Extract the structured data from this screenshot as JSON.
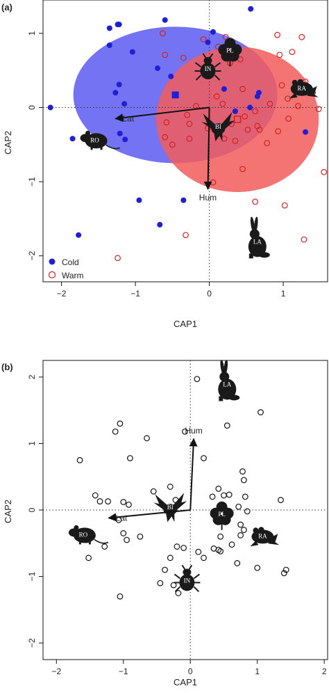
{
  "colors": {
    "cold": "#1f1fd6",
    "warm": "#d42020",
    "cold_ellipse": "#5b5bf2",
    "warm_ellipse": "#f25c5c",
    "ink": "#111111",
    "silhouette": "#1a1a1a"
  },
  "chart_data": [
    {
      "type": "scatter",
      "panel_label": "(a)",
      "xlabel": "CAP1",
      "ylabel": "CAP2",
      "xlim": [
        -2.25,
        1.6
      ],
      "ylim": [
        -2.35,
        1.45
      ],
      "xticks": [
        -2,
        -1,
        0,
        1
      ],
      "yticks": [
        -2,
        -1,
        0,
        1
      ],
      "xtick_labels": [
        "−2",
        "−1",
        "0",
        "1"
      ],
      "ytick_labels": [
        "−2",
        "−1",
        "0",
        "1"
      ],
      "legend": {
        "position": "bottom-left",
        "entries": [
          "Cold",
          "Warm"
        ]
      },
      "series": [
        {
          "name": "Cold",
          "marker": "filled-circle",
          "color": "cold",
          "points": [
            [
              -1.35,
              1.07
            ],
            [
              -1.24,
              1.12
            ],
            [
              -1.22,
              1.12
            ],
            [
              -0.6,
              1.18
            ],
            [
              0.05,
              1.02
            ],
            [
              0.56,
              1.33
            ],
            [
              -1.35,
              0.84
            ],
            [
              -1.04,
              0.75
            ],
            [
              -0.02,
              0.88
            ],
            [
              -1.22,
              0.31
            ],
            [
              -0.7,
              0.53
            ],
            [
              -0.52,
              0.42
            ],
            [
              -1.27,
              0.2
            ],
            [
              -1.15,
              0.05
            ],
            [
              -2.15,
              0.0
            ],
            [
              -1.85,
              -0.42
            ],
            [
              -1.21,
              -0.35
            ],
            [
              -1.14,
              -0.43
            ],
            [
              -0.95,
              -1.25
            ],
            [
              -0.35,
              -1.25
            ],
            [
              -0.67,
              -1.58
            ],
            [
              -1.77,
              -1.72
            ],
            [
              1.3,
              -0.33
            ],
            [
              0.67,
              0.2
            ],
            [
              0.65,
              0.15
            ],
            [
              0.2,
              0.25
            ],
            [
              0.35,
              -0.05
            ],
            [
              0.55,
              0.0
            ]
          ]
        },
        {
          "name": "Warm",
          "marker": "open-circle",
          "color": "warm",
          "points": [
            [
              -0.63,
              1.0
            ],
            [
              -0.6,
              0.71
            ],
            [
              -0.35,
              0.67
            ],
            [
              -0.08,
              0.92
            ],
            [
              0.12,
              0.82
            ],
            [
              0.22,
              0.95
            ],
            [
              0.42,
              0.65
            ],
            [
              0.92,
              0.98
            ],
            [
              1.12,
              0.75
            ],
            [
              1.25,
              0.95
            ],
            [
              0.95,
              0.71
            ],
            [
              0.98,
              0.3
            ],
            [
              1.3,
              0.35
            ],
            [
              1.06,
              0.12
            ],
            [
              1.2,
              0.02
            ],
            [
              1.4,
              0.2
            ],
            [
              1.48,
              -0.02
            ],
            [
              1.07,
              -0.15
            ],
            [
              0.93,
              -0.32
            ],
            [
              0.65,
              -0.25
            ],
            [
              0.2,
              -0.42
            ],
            [
              0.35,
              -0.45
            ],
            [
              0.52,
              -0.3
            ],
            [
              0.68,
              -0.3
            ],
            [
              0.78,
              -0.48
            ],
            [
              0.45,
              -0.83
            ],
            [
              0.05,
              -1.01
            ],
            [
              0.62,
              -1.27
            ],
            [
              1.02,
              -1.32
            ],
            [
              1.55,
              -0.87
            ],
            [
              1.28,
              -1.78
            ],
            [
              -0.32,
              -1.72
            ],
            [
              -1.24,
              -2.03
            ],
            [
              -0.6,
              -0.4
            ],
            [
              -0.5,
              -0.5
            ],
            [
              -0.27,
              -0.42
            ],
            [
              -0.27,
              -0.22
            ],
            [
              -0.58,
              -0.2
            ],
            [
              -0.3,
              -0.1
            ],
            [
              -0.18,
              0.02
            ],
            [
              -0.02,
              -0.28
            ],
            [
              0.1,
              0.15
            ],
            [
              0.18,
              0.05
            ],
            [
              0.3,
              -0.22
            ],
            [
              0.48,
              -0.12
            ],
            [
              0.62,
              -0.05
            ],
            [
              0.82,
              0.05
            ],
            [
              0.28,
              0.6
            ],
            [
              0.45,
              0.25
            ]
          ]
        }
      ],
      "centroids": {
        "cold": [
          -0.46,
          0.17
        ],
        "warm": [
          0.38,
          -0.16
        ]
      },
      "ellipses": [
        {
          "group": "Cold",
          "center": [
            -0.46,
            0.17
          ],
          "rx": 1.38,
          "ry": 0.92
        },
        {
          "group": "Warm",
          "center": [
            0.38,
            -0.16
          ],
          "rx": 1.1,
          "ry": 0.98
        }
      ],
      "vectors": [
        {
          "label": "Lat",
          "to": [
            -1.27,
            -0.15
          ]
        },
        {
          "label": "Hum",
          "to": [
            -0.02,
            -1.1
          ]
        }
      ],
      "silhouettes": [
        {
          "label": "PL",
          "animal": "plant",
          "at": [
            0.28,
            0.78
          ]
        },
        {
          "label": "IN",
          "animal": "insect",
          "at": [
            -0.02,
            0.53
          ]
        },
        {
          "label": "RA",
          "animal": "frog",
          "at": [
            1.25,
            0.27
          ]
        },
        {
          "label": "BI",
          "animal": "bird",
          "at": [
            0.12,
            -0.25
          ]
        },
        {
          "label": "RO",
          "animal": "rodent",
          "at": [
            -1.55,
            -0.43
          ]
        },
        {
          "label": "LA",
          "animal": "hare",
          "at": [
            0.65,
            -1.8
          ]
        }
      ]
    },
    {
      "type": "scatter",
      "panel_label": "(b)",
      "xlabel": "CAP1",
      "ylabel": "CAP2",
      "xlim": [
        -2.2,
        2.05
      ],
      "ylim": [
        -2.25,
        2.25
      ],
      "xticks": [
        -2,
        -1,
        0,
        1,
        2
      ],
      "yticks": [
        -2,
        -1,
        0,
        1,
        2
      ],
      "xtick_labels": [
        "−2",
        "−1",
        "0",
        "1",
        "2"
      ],
      "ytick_labels": [
        "−2",
        "−1",
        "0",
        "1",
        "2"
      ],
      "series": [
        {
          "name": "",
          "marker": "open-circle",
          "color": "ink",
          "points": [
            [
              0.1,
              1.97
            ],
            [
              0.55,
              1.27
            ],
            [
              1.05,
              1.47
            ],
            [
              -1.05,
              1.3
            ],
            [
              -1.12,
              1.18
            ],
            [
              -0.65,
              1.08
            ],
            [
              -0.08,
              1.18
            ],
            [
              -1.65,
              0.75
            ],
            [
              -0.9,
              0.78
            ],
            [
              0.2,
              0.78
            ],
            [
              -1.42,
              0.22
            ],
            [
              -1.35,
              0.13
            ],
            [
              -1.23,
              0.13
            ],
            [
              -1.0,
              0.12
            ],
            [
              -0.92,
              0.08
            ],
            [
              -0.55,
              0.28
            ],
            [
              -0.3,
              0.35
            ],
            [
              -0.22,
              0.15
            ],
            [
              0.33,
              0.2
            ],
            [
              0.42,
              0.32
            ],
            [
              0.5,
              0.22
            ],
            [
              0.58,
              0.23
            ],
            [
              0.78,
              0.58
            ],
            [
              0.8,
              0.45
            ],
            [
              0.82,
              0.2
            ],
            [
              0.72,
              0.05
            ],
            [
              0.85,
              -0.02
            ],
            [
              0.75,
              -0.22
            ],
            [
              0.8,
              -0.3
            ],
            [
              0.75,
              -0.38
            ],
            [
              1.05,
              -0.4
            ],
            [
              0.45,
              -0.4
            ],
            [
              0.62,
              -0.52
            ],
            [
              0.45,
              -0.62
            ],
            [
              0.42,
              -0.6
            ],
            [
              0.35,
              -0.58
            ],
            [
              0.7,
              -0.8
            ],
            [
              1.0,
              -0.87
            ],
            [
              1.43,
              -0.9
            ],
            [
              1.4,
              -0.95
            ],
            [
              1.35,
              0.15
            ],
            [
              0.12,
              -0.63
            ],
            [
              0.2,
              -0.72
            ],
            [
              -0.1,
              -0.57
            ],
            [
              -0.2,
              -0.55
            ],
            [
              -0.3,
              -0.72
            ],
            [
              -0.45,
              -1.1
            ],
            [
              -0.38,
              -0.9
            ],
            [
              -0.25,
              -1.13
            ],
            [
              -0.18,
              -1.25
            ],
            [
              -1.05,
              -1.3
            ],
            [
              -0.75,
              -0.4
            ],
            [
              -0.95,
              -0.45
            ],
            [
              -1.55,
              -0.45
            ],
            [
              -1.28,
              -0.55
            ],
            [
              -1.52,
              -0.72
            ],
            [
              -1.07,
              -0.15
            ],
            [
              -1.0,
              -0.35
            ]
          ]
        }
      ],
      "vectors": [
        {
          "label": "Lat",
          "to": [
            -1.22,
            -0.12
          ]
        },
        {
          "label": "Hum",
          "to": [
            0.05,
            1.07
          ]
        }
      ],
      "silhouettes": [
        {
          "label": "LA",
          "animal": "hare",
          "at": [
            0.55,
            1.9
          ]
        },
        {
          "label": "BI",
          "animal": "bird",
          "at": [
            -0.3,
            0.05
          ]
        },
        {
          "label": "PL",
          "animal": "plant",
          "at": [
            0.47,
            -0.05
          ]
        },
        {
          "label": "RO",
          "animal": "rodent",
          "at": [
            -1.6,
            -0.36
          ]
        },
        {
          "label": "RA",
          "animal": "frog",
          "at": [
            1.08,
            -0.38
          ]
        },
        {
          "label": "IN",
          "animal": "insect",
          "at": [
            -0.05,
            -1.05
          ]
        }
      ]
    }
  ]
}
